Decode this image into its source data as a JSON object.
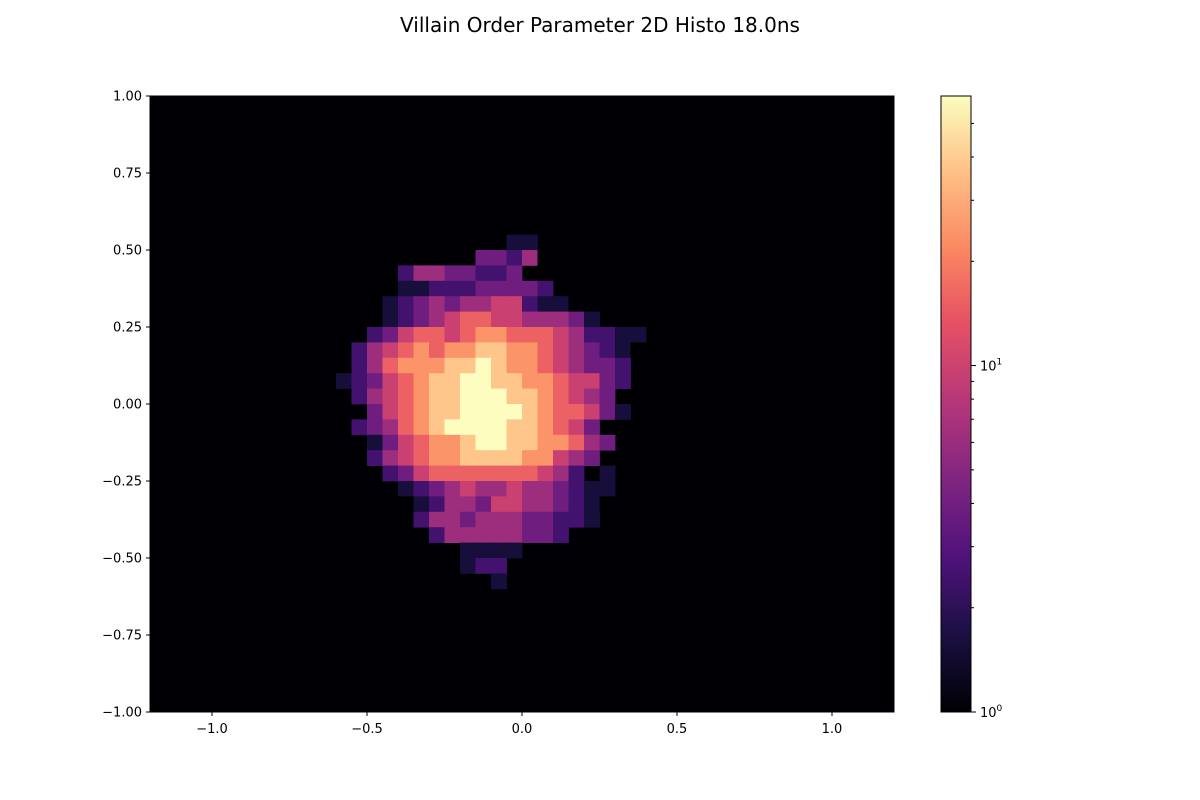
{
  "chart_data": {
    "type": "heatmap",
    "title": "Villain Order Parameter 2D Histo 18.0ns",
    "xlabel": "",
    "ylabel": "",
    "xlim": [
      -1.2,
      1.2
    ],
    "ylim": [
      -1.0,
      1.0
    ],
    "x_ticks": [
      -1.0,
      -0.5,
      0.0,
      0.5,
      1.0
    ],
    "x_tick_labels": [
      "−1.0",
      "−0.5",
      "0.0",
      "0.5",
      "1.0"
    ],
    "y_ticks": [
      -1.0,
      -0.75,
      -0.5,
      -0.25,
      0.0,
      0.25,
      0.5,
      0.75,
      1.0
    ],
    "y_tick_labels": [
      "−1.00",
      "−0.75",
      "−0.50",
      "−0.25",
      "0.00",
      "0.25",
      "0.50",
      "0.75",
      "1.00"
    ],
    "bin_width": 0.05,
    "grid_x_start": -0.6,
    "grid_y_top": 0.6,
    "rows": [
      "...........0.........",
      "..........011........",
      ".........33240........",
      "...024433223.0...",
      "....1122233332.0....",
      "...1234344552110.",
      "...12345665544431..",
      "..235665677666542211",
      ".2456767788776543210",
      ".246777889877654332.",
      "1235678899887765532.",
      ".24567889998876543..",
      "..35678899998766531.",
      ".2346789999887653..",
      "..1356778998877643.",
      "..245677888877543..",
      "...2356666666542.1..",
      "....12345445443211...",
      "....01244355443210...",
      ".....244344433221....",
      "......244444332......",
      "........1111.........",
      "........122..........",
      "..........1.........."
    ],
    "colorbar": {
      "scale": "log",
      "vmin": 1,
      "vmax": 60,
      "tick_label_base": "10",
      "major_ticks": [
        {
          "value": 1,
          "exponent": "0"
        },
        {
          "value": 10,
          "exponent": "1"
        }
      ],
      "minor_ticks": [
        2,
        3,
        4,
        5,
        6,
        7,
        8,
        9,
        20,
        30,
        40,
        50
      ],
      "colormap": "magma"
    },
    "background_color": "#000004"
  }
}
